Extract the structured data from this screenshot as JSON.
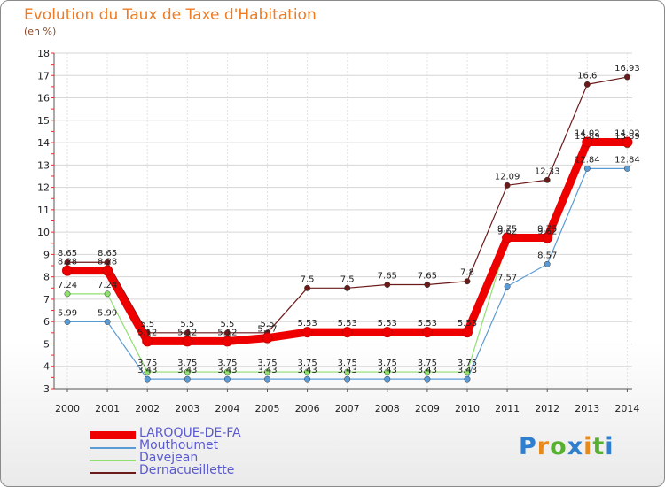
{
  "chart_data": {
    "type": "line",
    "title": "Evolution du Taux de Taxe d'Habitation",
    "ylabel": "(en %)",
    "xlabel": "",
    "ylim": [
      3,
      18
    ],
    "yticks": [
      "3",
      "4",
      "5",
      "6",
      "7",
      "8",
      "9",
      "10",
      "11",
      "12",
      "13",
      "14",
      "15",
      "16",
      "17",
      "18"
    ],
    "categories": [
      "2000",
      "2001",
      "2002",
      "2003",
      "2004",
      "2005",
      "2006",
      "2007",
      "2008",
      "2009",
      "2010",
      "2011",
      "2012",
      "2013",
      "2014"
    ],
    "series": [
      {
        "name": "Dernacueillette",
        "color": "#6b1a1a",
        "values": [
          8.65,
          8.65,
          5.5,
          5.5,
          5.5,
          5.5,
          7.5,
          7.5,
          7.65,
          7.65,
          7.8,
          12.09,
          12.33,
          16.6,
          16.93
        ],
        "labels": [
          "8.65",
          "8.65",
          "5.5",
          "5.5",
          "5.5",
          "5.5",
          "7.5",
          "7.5",
          "7.65",
          "7.65",
          "7.8",
          "12.09",
          "12.33",
          "16.6",
          "16.93"
        ]
      },
      {
        "name": "Davejean",
        "color": "#90e070",
        "values": [
          7.24,
          7.24,
          3.75,
          3.75,
          3.75,
          3.75,
          3.75,
          3.75,
          3.75,
          3.75,
          3.75,
          9.62,
          9.62,
          13.89,
          13.89
        ],
        "labels": [
          "7.24",
          "7.24",
          "3.75",
          "3.75",
          "3.75",
          "3.75",
          "3.75",
          "3.75",
          "3.75",
          "3.75",
          "3.75",
          "9.62",
          "9.62",
          "13.89",
          "13.89"
        ]
      },
      {
        "name": "Mouthoumet",
        "color": "#5b9bd5",
        "values": [
          5.99,
          5.99,
          3.43,
          3.43,
          3.43,
          3.43,
          3.43,
          3.43,
          3.43,
          3.43,
          3.43,
          7.57,
          8.57,
          12.84,
          12.84
        ],
        "labels": [
          "5.99",
          "5.99",
          "3.43",
          "3.43",
          "3.43",
          "3.43",
          "3.43",
          "3.43",
          "3.43",
          "3.43",
          "3.43",
          "7.57",
          "8.57",
          "12.84",
          "12.84"
        ]
      },
      {
        "name": "LAROQUE-DE-FA",
        "color": "#ee0000",
        "values": [
          8.28,
          8.28,
          5.12,
          5.12,
          5.12,
          5.27,
          5.53,
          5.53,
          5.53,
          5.53,
          5.53,
          9.75,
          9.75,
          14.02,
          14.02
        ],
        "labels": [
          "8.28",
          "8.28",
          "5.12",
          "5.12",
          "5.12",
          "5.27",
          "5.53",
          "5.53",
          "5.53",
          "5.53",
          "5.53",
          "9.75",
          "9.75",
          "14.02",
          "14.02"
        ]
      }
    ],
    "legend": [
      "LAROQUE-DE-FA",
      "Mouthoumet",
      "Davejean",
      "Dernacueillette"
    ]
  },
  "header": {
    "title": "Evolution du Taux de Taxe d'Habitation",
    "unit": "(en %)"
  },
  "brand": {
    "letters": [
      "P",
      "r",
      "o",
      "x",
      "i",
      "t",
      "i"
    ],
    "colors": [
      "#2f7fd0",
      "#e88a1a",
      "#58b030",
      "#2f7fd0",
      "#e88a1a",
      "#58b030",
      "#2f7fd0"
    ]
  }
}
